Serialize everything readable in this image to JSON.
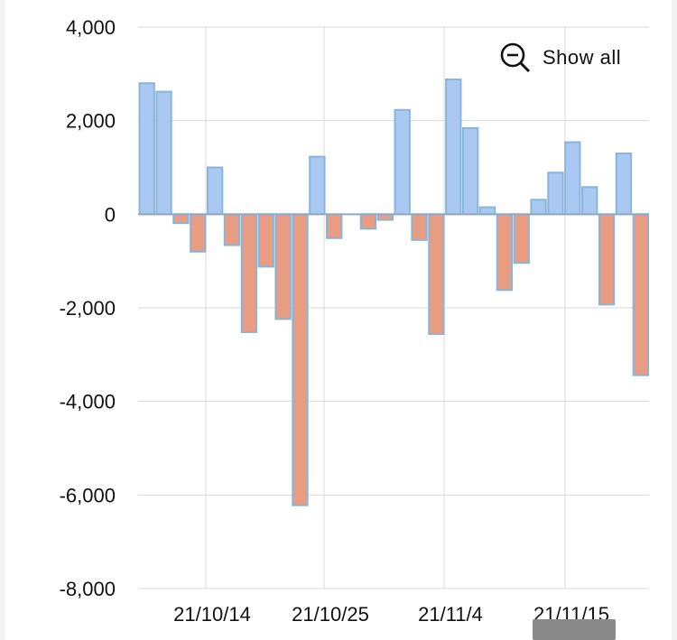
{
  "controls": {
    "show_all_label": "Show all",
    "zoom_icon": "zoom-out-icon"
  },
  "colors": {
    "positive_fill": "#a9c9f3",
    "negative_fill": "#e89c82",
    "bar_stroke": "#8ab4da",
    "grid": "#d9d9d9",
    "zero_line": "#8fa8c8"
  },
  "chart_data": {
    "type": "bar",
    "title": "",
    "xlabel": "",
    "ylabel": "",
    "ylim": [
      -8000,
      4000
    ],
    "y_ticks": [
      4000,
      2000,
      0,
      -2000,
      -4000,
      -6000,
      -8000
    ],
    "y_tick_labels": [
      "4,000",
      "2,000",
      "0",
      "-2,000",
      "-4,000",
      "-6,000",
      "-8,000"
    ],
    "x_tick_labels": [
      "21/10/14",
      "21/10/25",
      "21/11/4",
      "21/11/15"
    ],
    "grid": true,
    "values": [
      2800,
      2620,
      -190,
      -800,
      1000,
      -660,
      -2520,
      -1120,
      -2240,
      -6220,
      1230,
      -510,
      0,
      -310,
      -120,
      2230,
      -550,
      -2560,
      2880,
      1840,
      150,
      -1620,
      -1040,
      310,
      890,
      1540,
      580,
      -1930,
      1300,
      -3440
    ]
  }
}
